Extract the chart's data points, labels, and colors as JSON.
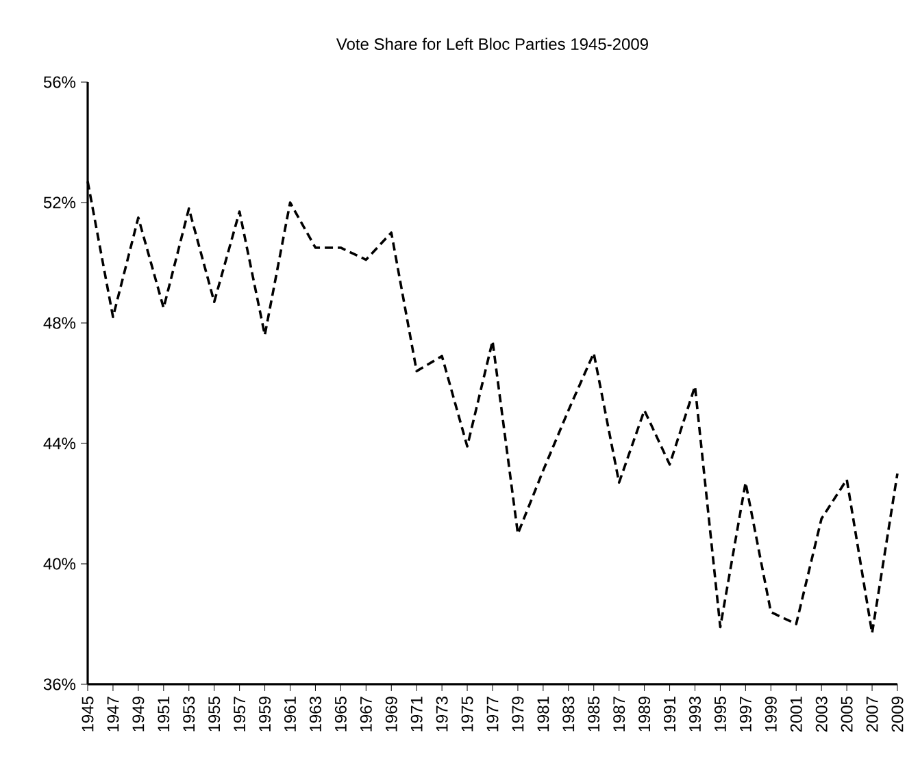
{
  "chart_data": {
    "type": "line",
    "title": "Vote Share for Left Bloc Parties 1945-2009",
    "categories": [
      "1945",
      "1947",
      "1949",
      "1951",
      "1953",
      "1955",
      "1957",
      "1959",
      "1961",
      "1963",
      "1965",
      "1967",
      "1969",
      "1971",
      "1973",
      "1975",
      "1977",
      "1979",
      "1981",
      "1983",
      "1985",
      "1987",
      "1989",
      "1991",
      "1993",
      "1995",
      "1997",
      "1999",
      "2001",
      "2003",
      "2005",
      "2007",
      "2009"
    ],
    "series": [
      {
        "color": "#000000",
        "line_style": "dashed",
        "values": [
          52.7,
          48.2,
          51.5,
          48.5,
          51.8,
          48.7,
          51.7,
          47.6,
          52.0,
          50.5,
          50.5,
          50.1,
          51.0,
          46.4,
          46.9,
          43.9,
          47.4,
          41.0,
          43.1,
          45.1,
          47.0,
          42.7,
          45.1,
          43.3,
          45.9,
          37.9,
          42.7,
          38.4,
          38.0,
          41.5,
          42.8,
          37.7,
          43.0
        ]
      }
    ],
    "ylim": [
      36,
      56
    ],
    "yticks": [
      {
        "value": 36,
        "label": "36%"
      },
      {
        "value": 40,
        "label": "40%"
      },
      {
        "value": 44,
        "label": "44%"
      },
      {
        "value": 48,
        "label": "48%"
      },
      {
        "value": 52,
        "label": "52%"
      },
      {
        "value": 56,
        "label": "56%"
      }
    ],
    "grid": false,
    "marker": "none"
  }
}
